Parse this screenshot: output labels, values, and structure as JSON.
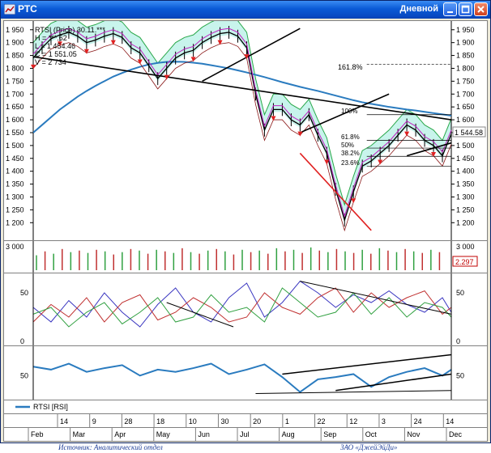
{
  "window": {
    "title": "РТС",
    "period": "Дневной",
    "icons": {
      "app": "chart-icon",
      "minimize": "minimize-icon",
      "maximize": "maximize-icon",
      "close": "close-icon"
    }
  },
  "price_panel": {
    "info_lines": [
      "RTSI (Price) 30.11.***",
      "H = ***.62",
      "L = 1 454.46",
      "C = 1 551.05",
      "V = 2 734"
    ],
    "fib_labels": [
      "161.8%",
      "100%",
      "61.8%",
      "50%",
      "38.2%",
      "23.6%"
    ],
    "last_price": "1 544.58"
  },
  "volume_panel": {
    "last_value": "2.297"
  },
  "legend": {
    "series": "RTSI [RSI]"
  },
  "caption": {
    "left": "Источник: Аналитический отдел",
    "right": "ЗАО «ДжейЭйДи»"
  },
  "chart_data": [
    {
      "type": "line",
      "name": "price",
      "yticks": [
        1950,
        1900,
        1850,
        1800,
        1750,
        1700,
        1650,
        1600,
        1550,
        1500,
        1450,
        1400,
        1350,
        1300,
        1250,
        1200
      ],
      "ylim": [
        1160,
        1965
      ],
      "x": [
        0,
        4,
        8,
        12,
        16,
        20,
        24,
        28,
        32,
        36,
        40,
        44,
        48,
        52,
        56,
        60,
        64,
        68,
        72,
        76,
        80,
        84,
        88,
        92,
        96,
        100,
        104,
        108,
        112,
        116,
        120,
        124,
        128,
        132,
        136,
        140,
        144,
        148,
        152,
        156,
        160,
        164,
        168,
        172,
        176,
        180,
        184,
        188
      ],
      "close": [
        1840,
        1880,
        1915,
        1930,
        1940,
        1925,
        1900,
        1910,
        1925,
        1935,
        1920,
        1880,
        1860,
        1810,
        1760,
        1800,
        1840,
        1860,
        1870,
        1900,
        1920,
        1935,
        1940,
        1925,
        1880,
        1700,
        1560,
        1640,
        1640,
        1600,
        1580,
        1620,
        1540,
        1470,
        1330,
        1210,
        1320,
        1420,
        1440,
        1470,
        1500,
        1540,
        1580,
        1560,
        1520,
        1500,
        1460,
        1545
      ],
      "ma_long": [
        1550,
        1580,
        1610,
        1640,
        1665,
        1690,
        1712,
        1732,
        1750,
        1768,
        1782,
        1795,
        1806,
        1815,
        1821,
        1825,
        1826,
        1825,
        1822,
        1818,
        1812,
        1806,
        1800,
        1792,
        1784,
        1775,
        1766,
        1756,
        1746,
        1737,
        1728,
        1720,
        1712,
        1703,
        1694,
        1685,
        1676,
        1668,
        1662,
        1656,
        1650,
        1645,
        1640,
        1636,
        1631,
        1626,
        1621,
        1616
      ],
      "trendlines": [
        {
          "from": [
            0,
            1845
          ],
          "to": [
            188,
            1600
          ]
        },
        {
          "from": [
            76,
            1750
          ],
          "to": [
            120,
            1955
          ]
        },
        {
          "from": [
            120,
            1470
          ],
          "to": [
            152,
            1170
          ]
        },
        {
          "from": [
            120,
            1550
          ],
          "to": [
            160,
            1700
          ]
        },
        {
          "from": [
            168,
            1460
          ],
          "to": [
            188,
            1510
          ]
        }
      ],
      "fib_levels": [
        1815,
        1620,
        1520,
        1490,
        1458,
        1420
      ]
    },
    {
      "type": "bar",
      "name": "volume",
      "yticks": [
        3000
      ],
      "ylim": [
        0,
        3300
      ],
      "values": [
        1900,
        2400,
        2100,
        2700,
        2300,
        2500,
        2200,
        2600,
        2400,
        2000,
        2300,
        2700,
        2500,
        2100,
        2600,
        2400,
        2200,
        2800,
        2300,
        2100,
        2500,
        2700,
        2400,
        2000,
        2600,
        2300,
        2500,
        2100,
        2800,
        2400,
        2600,
        2200,
        2900,
        2500,
        2300,
        2700,
        2400,
        2200,
        2600,
        2100,
        2800,
        2500,
        2300,
        2700,
        2400,
        2200,
        2600,
        2300
      ]
    },
    {
      "type": "line",
      "name": "oscillator",
      "yticks": [
        50,
        0
      ],
      "ylim": [
        0,
        65
      ],
      "x": [
        0,
        8,
        16,
        24,
        32,
        40,
        48,
        56,
        64,
        72,
        80,
        88,
        96,
        104,
        112,
        120,
        128,
        136,
        144,
        152,
        160,
        168,
        176,
        184,
        188
      ],
      "series": [
        {
          "values": [
            35,
            20,
            42,
            25,
            50,
            30,
            15,
            38,
            55,
            30,
            20,
            45,
            60,
            25,
            40,
            62,
            50,
            35,
            48,
            40,
            52,
            38,
            30,
            45,
            30
          ]
        },
        {
          "values": [
            20,
            38,
            25,
            45,
            20,
            40,
            48,
            22,
            30,
            45,
            35,
            20,
            25,
            50,
            35,
            28,
            45,
            55,
            30,
            50,
            35,
            45,
            52,
            28,
            35
          ]
        },
        {
          "values": [
            28,
            35,
            15,
            30,
            40,
            18,
            30,
            45,
            20,
            25,
            48,
            30,
            35,
            20,
            55,
            40,
            25,
            30,
            50,
            28,
            45,
            25,
            40,
            35,
            25
          ]
        }
      ]
    },
    {
      "type": "line",
      "name": "RTSI [RSI]",
      "yticks": [
        50
      ],
      "ylim": [
        20,
        85
      ],
      "x": [
        0,
        8,
        16,
        24,
        32,
        40,
        48,
        56,
        64,
        72,
        80,
        88,
        96,
        104,
        112,
        120,
        128,
        136,
        144,
        152,
        160,
        168,
        176,
        184,
        188
      ],
      "values": [
        62,
        58,
        66,
        55,
        60,
        64,
        50,
        58,
        55,
        60,
        66,
        52,
        58,
        65,
        48,
        28,
        45,
        48,
        52,
        35,
        48,
        55,
        60,
        50,
        58
      ],
      "xticks": [
        "14",
        "9",
        "28",
        "18",
        "10",
        "30",
        "20",
        "1",
        "22",
        "12",
        "3",
        "24",
        "14"
      ],
      "months": [
        "Feb",
        "Mar",
        "Apr",
        "May",
        "Jun",
        "Jul",
        "Aug",
        "Sep",
        "Oct",
        "Nov",
        "Dec"
      ]
    }
  ]
}
